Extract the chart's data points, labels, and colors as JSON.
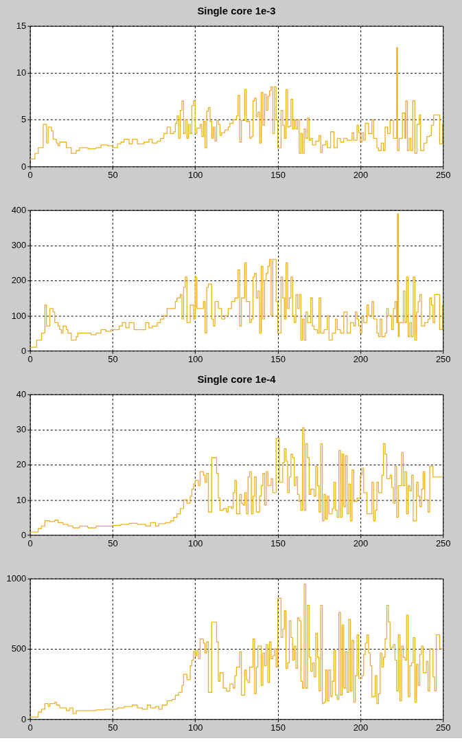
{
  "chart_data": [
    {
      "type": "step",
      "title": "Single core 1e-3",
      "xlim": [
        0,
        250
      ],
      "xticks": [
        0,
        50,
        100,
        150,
        200,
        250
      ],
      "ylim": [
        0,
        15
      ],
      "yticks": [
        0,
        5,
        10,
        15
      ],
      "grid": true,
      "x": [
        0,
        3,
        5,
        8,
        10,
        11,
        13,
        14,
        16,
        17,
        18,
        20,
        22,
        25,
        28,
        30,
        35,
        40,
        43,
        47,
        50,
        53,
        55,
        57,
        60,
        62,
        65,
        69,
        72,
        74,
        77,
        79,
        81,
        83,
        85,
        87,
        88,
        89,
        90,
        91,
        92,
        93,
        94,
        95,
        96,
        97,
        98,
        99,
        100,
        101,
        103,
        104,
        105,
        106,
        107,
        108,
        109,
        110,
        111,
        112,
        113,
        114,
        115,
        116,
        118,
        120,
        121,
        123,
        125,
        126,
        127,
        128,
        130,
        131,
        133,
        134,
        135,
        136,
        137,
        138,
        139,
        140,
        141,
        142,
        143,
        144,
        145,
        146,
        147,
        148,
        149,
        150,
        152,
        153,
        154,
        155,
        156,
        157,
        158,
        159,
        160,
        161,
        162,
        163,
        164,
        165,
        166,
        167,
        168,
        169,
        170,
        171,
        173,
        175,
        176,
        177,
        179,
        180,
        182,
        184,
        186,
        188,
        190,
        192,
        195,
        196,
        198,
        199,
        200,
        201,
        202,
        203,
        205,
        207,
        208,
        210,
        211,
        212.7,
        214,
        215,
        216.5,
        218,
        220,
        222,
        222.5,
        223.5,
        225.5,
        227,
        227.5,
        228.5,
        229.5,
        230.5,
        231.7,
        233,
        234.3,
        235.7,
        236.5,
        238.5,
        240.3,
        242,
        243,
        244.4,
        247,
        248,
        249.7
      ],
      "series": [
        {
          "color": "#edb120",
          "values": [
            0.8,
            1.4,
            2.0,
            4.5,
            2.5,
            4.2,
            3.8,
            2.9,
            2.5,
            2.2,
            2.6,
            2.6,
            2.0,
            1.4,
            1.7,
            2.0,
            1.9,
            2.0,
            2.3,
            2.2,
            2.0,
            2.4,
            2.6,
            2.9,
            2.4,
            2.9,
            2.4,
            2.6,
            2.9,
            2.5,
            2.7,
            3.0,
            3.5,
            4.2,
            3.5,
            3.7,
            4.6,
            5.4,
            3.0,
            6.0,
            7.0,
            3.5,
            5.0,
            3.0,
            4.5,
            3.5,
            6.5,
            7.0,
            3.5,
            4.1,
            4.5,
            3.2,
            4.8,
            2.0,
            5.9,
            6.3,
            4.8,
            3.0,
            4.2,
            2.7,
            4.9,
            4.5,
            3.3,
            3.6,
            3.9,
            4.2,
            4.6,
            5.0,
            5.4,
            7.6,
            2.6,
            4.9,
            8.2,
            4.8,
            3.0,
            3.2,
            7.0,
            7.3,
            5.3,
            5.8,
            2.5,
            7.9,
            4.4,
            7.7,
            6.0,
            7.5,
            8.1,
            8.5,
            3.5,
            8.5,
            5.0,
            2.0,
            6.0,
            4.4,
            3.0,
            8.2,
            4.2,
            4.3,
            7.2,
            4.0,
            5.0,
            4.0,
            5.0,
            1.4,
            3.5,
            1.4,
            4.0,
            3.0,
            5.2,
            2.8,
            3.0,
            2.3,
            2.7,
            3.3,
            1.5,
            2.3,
            2.7,
            2.0,
            3.7,
            2.0,
            3.0,
            2.6,
            3.0,
            2.8,
            3.6,
            2.8,
            4.4,
            3.6,
            2.6,
            3.6,
            2.8,
            4.6,
            3.5,
            5.0,
            3.0,
            2.0,
            1.7,
            2.5,
            1.7,
            4.2,
            3.5,
            4.9,
            3.0,
            12.7,
            1.7,
            3.0,
            5.7,
            3.0,
            7.0,
            1.7,
            3.0,
            1.7,
            7.0,
            1.4,
            4.5,
            5.5,
            1.7,
            2.5,
            3.2,
            3.3,
            4.4,
            5.5,
            5.5,
            2.4,
            4.6
          ]
        }
      ]
    },
    {
      "type": "step",
      "xlim": [
        0,
        250
      ],
      "xticks": [
        0,
        50,
        100,
        150,
        200,
        250
      ],
      "ylim": [
        0,
        400
      ],
      "yticks": [
        0,
        100,
        200,
        300,
        400
      ],
      "grid": true,
      "x": [
        0,
        4,
        7,
        9,
        10,
        12,
        14,
        15,
        17,
        18,
        19,
        20,
        22,
        23,
        25,
        28,
        29,
        33,
        37,
        40,
        43,
        46,
        49,
        52,
        54,
        56,
        58,
        60,
        63,
        67,
        70,
        72,
        74,
        77,
        79,
        81,
        83,
        85,
        88,
        89,
        91,
        92,
        93,
        94,
        95,
        97,
        99,
        100,
        101,
        103,
        105,
        106,
        107,
        108,
        110,
        111,
        112,
        114,
        116,
        118,
        120,
        122,
        124,
        126,
        127,
        128,
        130,
        131,
        133,
        134,
        135,
        136,
        137,
        138,
        139,
        140,
        141,
        142,
        143,
        144,
        145,
        146,
        147,
        149,
        150,
        152,
        153,
        154,
        155,
        156,
        157,
        158,
        159,
        160,
        161,
        162,
        163,
        164,
        165,
        166,
        167,
        168,
        170,
        171,
        172,
        174,
        175,
        176,
        178,
        180,
        181,
        183,
        185,
        186,
        188,
        190,
        192,
        194,
        196,
        197,
        198,
        199,
        200,
        201,
        202,
        204,
        205,
        207,
        208,
        210,
        211,
        212,
        213,
        215,
        216,
        217,
        219,
        220,
        221,
        222,
        222.5,
        223,
        223.5,
        226,
        227,
        228,
        229,
        230,
        231,
        232,
        233,
        234,
        235,
        236,
        237,
        239,
        241,
        242,
        243,
        244,
        245,
        248,
        249.7
      ],
      "series": [
        {
          "color": "#edb120",
          "values": [
            10,
            30,
            50,
            130,
            70,
            120,
            110,
            80,
            70,
            60,
            50,
            70,
            60,
            50,
            30,
            40,
            50,
            50,
            45,
            50,
            60,
            55,
            60,
            60,
            70,
            80,
            65,
            80,
            60,
            60,
            80,
            65,
            70,
            80,
            90,
            100,
            120,
            120,
            140,
            150,
            160,
            90,
            180,
            210,
            80,
            130,
            90,
            210,
            120,
            120,
            140,
            50,
            180,
            190,
            90,
            70,
            140,
            120,
            90,
            100,
            120,
            140,
            150,
            230,
            70,
            150,
            250,
            140,
            80,
            90,
            210,
            220,
            150,
            170,
            50,
            240,
            90,
            200,
            220,
            240,
            260,
            100,
            260,
            140,
            50,
            210,
            150,
            90,
            250,
            120,
            150,
            210,
            100,
            80,
            160,
            120,
            160,
            30,
            90,
            30,
            110,
            80,
            150,
            70,
            60,
            50,
            150,
            50,
            60,
            100,
            30,
            50,
            90,
            60,
            50,
            110,
            50,
            80,
            70,
            110,
            90,
            70,
            50,
            100,
            80,
            130,
            100,
            140,
            90,
            50,
            40,
            90,
            40,
            50,
            120,
            100,
            60,
            120,
            140,
            80,
            390,
            40,
            80,
            170,
            80,
            210,
            40,
            80,
            40,
            210,
            30,
            110,
            140,
            160,
            70,
            80,
            90,
            150,
            130,
            80,
            160,
            60,
            130
          ]
        }
      ]
    },
    {
      "type": "step",
      "title": "Single core 1e-4",
      "xlim": [
        0,
        250
      ],
      "xticks": [
        0,
        50,
        100,
        150,
        200,
        250
      ],
      "ylim": [
        0,
        40
      ],
      "yticks": [
        0,
        10,
        20,
        30,
        40
      ],
      "grid": true,
      "x": [
        0,
        5,
        7,
        9,
        12,
        15,
        17,
        20,
        23,
        26,
        30,
        35,
        40,
        45,
        50,
        55,
        60,
        65,
        70,
        73,
        76,
        78,
        82,
        85,
        87,
        89,
        91,
        93,
        95,
        97,
        98,
        99,
        100,
        102,
        103,
        105,
        106,
        107,
        108,
        110,
        113,
        114,
        115,
        117,
        119,
        120,
        122,
        123,
        124,
        125,
        127,
        128,
        129,
        130,
        131,
        132,
        133,
        134,
        135,
        136,
        137,
        139,
        140,
        141,
        142,
        143,
        144,
        146,
        147,
        149,
        151,
        153,
        154,
        155,
        156,
        157,
        158,
        159,
        160,
        161,
        162,
        163,
        164,
        165,
        166,
        167,
        168,
        169,
        170,
        172,
        173,
        174,
        175,
        176,
        177,
        178,
        179,
        180,
        181,
        183,
        184,
        185,
        186,
        187,
        188,
        189,
        190,
        191,
        192,
        193,
        194,
        195,
        196,
        198,
        200,
        201,
        202,
        204,
        207,
        208,
        209,
        210,
        211,
        213,
        214,
        215,
        216,
        218,
        219,
        220,
        221,
        222,
        223,
        225,
        226,
        227,
        228,
        229,
        230,
        231,
        232,
        234,
        235,
        236,
        237,
        238,
        239,
        241,
        242,
        244,
        249.7
      ],
      "series": [
        {
          "color": "#edb120",
          "values": [
            0.8,
            1.8,
            2.5,
            4.0,
            3.8,
            4.2,
            3.5,
            3.0,
            2.5,
            2.0,
            2.5,
            2.0,
            2.5,
            2.5,
            2.7,
            3.0,
            3.3,
            3.0,
            2.5,
            3.5,
            2.5,
            3.2,
            3.5,
            4.0,
            5.0,
            6.0,
            7.5,
            10.0,
            9.0,
            11.0,
            13.0,
            14.5,
            15.5,
            14.0,
            18.0,
            17.0,
            15.0,
            17.5,
            6.5,
            22.0,
            17.5,
            10.5,
            7.0,
            7.5,
            6.5,
            8.0,
            7.5,
            12.0,
            15.5,
            6.0,
            11.5,
            9.0,
            8.5,
            12.0,
            6.0,
            16.5,
            18.0,
            6.0,
            11.0,
            16.5,
            6.5,
            11.0,
            14.0,
            17.5,
            8.5,
            18.0,
            14.0,
            16.0,
            12.0,
            27.5,
            15.0,
            20.5,
            24.5,
            21.0,
            12.0,
            16.5,
            23.0,
            22.0,
            14.0,
            16.5,
            11.5,
            9.5,
            7.0,
            30.5,
            7.0,
            26.0,
            22.0,
            11.5,
            13.0,
            11.0,
            19.5,
            14.0,
            6.5,
            26.0,
            4.0,
            11.5,
            4.5,
            11.0,
            6.0,
            7.5,
            15.0,
            7.0,
            5.0,
            24.0,
            5.0,
            23.0,
            8.0,
            22.5,
            6.0,
            14.5,
            4.0,
            18.5,
            9.5,
            10.5,
            17.0,
            19.0,
            12.0,
            6.0,
            15.0,
            4.0,
            7.0,
            15.0,
            12.0,
            17.0,
            26.0,
            23.0,
            16.0,
            17.0,
            13.5,
            9.0,
            19.5,
            5.0,
            14.0,
            23.5,
            14.0,
            18.0,
            6.0,
            14.0,
            12.5,
            17.0,
            4.0,
            15.0,
            11.0,
            8.0,
            13.0,
            18.0,
            10.0,
            6.5,
            19.5,
            16.5,
            16.5
          ]
        }
      ]
    },
    {
      "type": "step",
      "xlim": [
        0,
        250
      ],
      "xticks": [
        0,
        50,
        100,
        150,
        200,
        250
      ],
      "ylim": [
        0,
        1000
      ],
      "yticks": [
        0,
        500,
        1000
      ],
      "grid": true,
      "x": [
        0,
        5,
        7,
        9,
        11,
        12,
        15,
        16,
        18,
        22,
        24,
        26,
        28,
        35,
        40,
        45,
        50,
        53,
        57,
        62,
        65,
        68,
        71,
        73,
        76,
        78,
        80,
        83,
        86,
        88,
        90,
        92,
        93,
        95,
        97,
        98,
        99,
        100,
        101,
        102,
        103,
        105,
        106,
        107,
        108,
        110,
        113,
        114,
        115,
        117,
        119,
        121,
        123,
        124,
        125,
        127,
        128,
        130,
        131,
        132,
        133,
        135,
        136,
        137,
        138,
        140,
        141,
        142,
        143,
        144,
        145,
        146,
        147,
        148,
        149,
        150,
        152,
        153,
        154,
        155,
        156,
        157,
        158,
        159,
        160,
        161,
        162,
        163,
        164,
        165,
        166,
        167,
        168,
        169,
        170,
        171,
        172,
        173,
        174,
        175,
        176,
        177,
        178,
        179,
        180,
        181,
        182,
        183,
        184,
        185,
        186,
        187,
        188,
        189,
        190,
        191,
        192,
        193,
        194,
        195,
        196,
        197,
        198,
        199,
        201,
        202,
        203,
        204,
        205,
        206,
        207,
        209,
        210,
        211,
        212,
        213,
        214,
        215,
        216,
        217,
        218,
        220,
        221,
        222,
        223,
        224,
        225,
        226,
        227,
        228,
        229,
        230,
        231,
        232,
        233,
        234,
        235,
        236,
        237,
        238,
        240,
        241,
        242,
        244,
        245,
        246,
        248,
        249.7
      ],
      "series": [
        {
          "color": "#edb120",
          "values": [
            15,
            50,
            70,
            110,
            90,
            110,
            120,
            100,
            80,
            60,
            80,
            40,
            60,
            60,
            65,
            70,
            70,
            80,
            90,
            100,
            80,
            70,
            100,
            80,
            90,
            70,
            100,
            130,
            140,
            170,
            190,
            240,
            320,
            280,
            380,
            420,
            480,
            450,
            490,
            430,
            570,
            540,
            470,
            550,
            190,
            690,
            550,
            270,
            330,
            220,
            200,
            250,
            220,
            310,
            370,
            480,
            170,
            350,
            280,
            260,
            370,
            570,
            180,
            370,
            520,
            240,
            470,
            380,
            530,
            260,
            550,
            430,
            450,
            500,
            370,
            860,
            580,
            640,
            770,
            360,
            400,
            700,
            580,
            420,
            520,
            360,
            720,
            700,
            270,
            220,
            960,
            220,
            810,
            440,
            340,
            400,
            300,
            610,
            440,
            200,
            810,
            110,
            120,
            350,
            130,
            350,
            160,
            270,
            490,
            170,
            140,
            760,
            170,
            670,
            220,
            480,
            190,
            710,
            200,
            560,
            120,
            310,
            600,
            290,
            310,
            460,
            540,
            600,
            470,
            380,
            160,
            310,
            110,
            180,
            470,
            370,
            440,
            570,
            810,
            690,
            510,
            530,
            420,
            200,
            600,
            130,
            520,
            440,
            420,
            740,
            160,
            380,
            400,
            580,
            120,
            390,
            240,
            460,
            520,
            330,
            410,
            200,
            500,
            300,
            200,
            600,
            500,
            500
          ]
        }
      ]
    }
  ]
}
